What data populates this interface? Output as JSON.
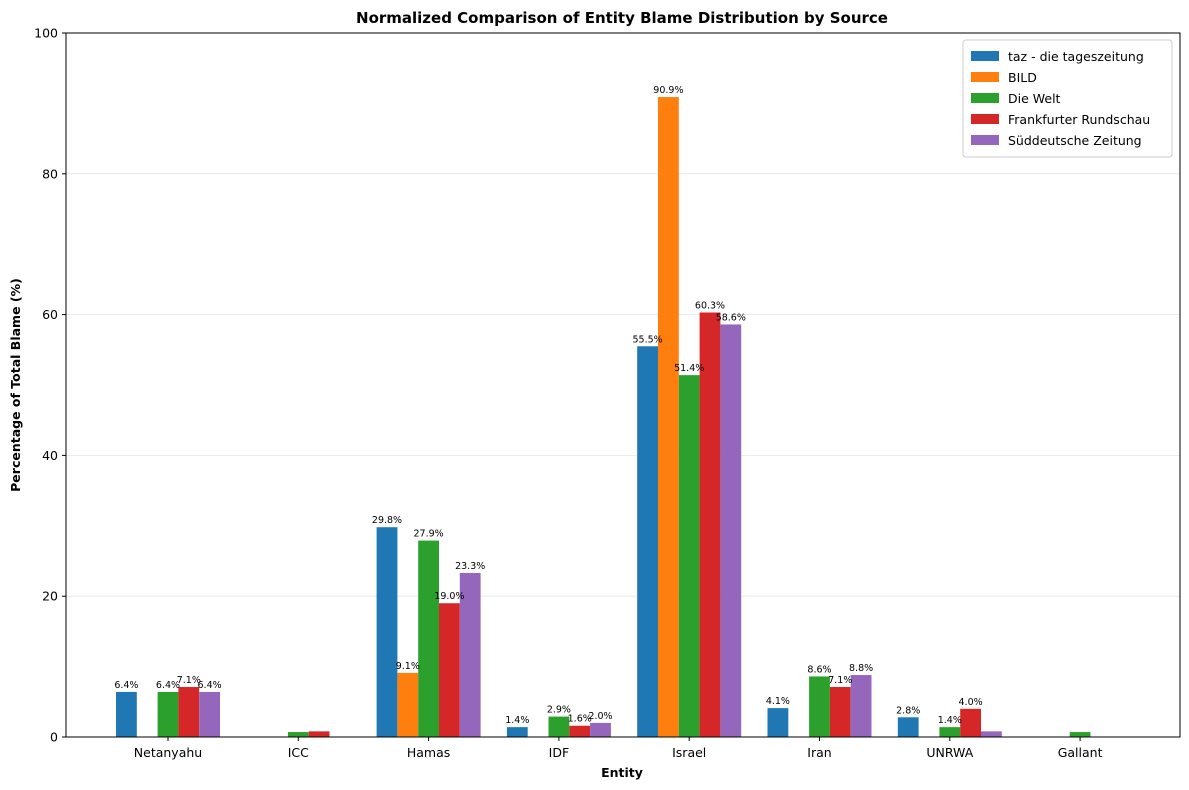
{
  "chart_data": {
    "type": "bar",
    "title": "Normalized Comparison of Entity Blame Distribution by Source",
    "xlabel": "Entity",
    "ylabel": "Percentage of Total Blame (%)",
    "ylim": [
      0,
      100
    ],
    "yticks": [
      0,
      20,
      40,
      60,
      80,
      100
    ],
    "grid": "y",
    "legend_position": "top-right",
    "categories": [
      "Netanyahu",
      "ICC",
      "Hamas",
      "IDF",
      "Israel",
      "Iran",
      "UNRWA",
      "Gallant"
    ],
    "series": [
      {
        "name": "taz - die tageszeitung",
        "color": "#1f77b4",
        "values": [
          6.4,
          0,
          29.8,
          1.4,
          55.5,
          4.1,
          2.8,
          0
        ],
        "labels": [
          "6.4%",
          "",
          "29.8%",
          "1.4%",
          "55.5%",
          "4.1%",
          "2.8%",
          ""
        ]
      },
      {
        "name": "BILD",
        "color": "#ff7f0e",
        "values": [
          0,
          0,
          9.1,
          0,
          90.9,
          0,
          0,
          0
        ],
        "labels": [
          "",
          "",
          "9.1%",
          "",
          "90.9%",
          "",
          "",
          ""
        ]
      },
      {
        "name": "Die Welt",
        "color": "#2ca02c",
        "values": [
          6.4,
          0.7,
          27.9,
          2.9,
          51.4,
          8.6,
          1.4,
          0.7
        ],
        "labels": [
          "6.4%",
          "",
          "27.9%",
          "2.9%",
          "51.4%",
          "8.6%",
          "1.4%",
          ""
        ]
      },
      {
        "name": "Frankfurter Rundschau",
        "color": "#d62728",
        "values": [
          7.1,
          0.8,
          19.0,
          1.6,
          60.3,
          7.1,
          4.0,
          0
        ],
        "labels": [
          "7.1%",
          "",
          "19.0%",
          "1.6%",
          "60.3%",
          "7.1%",
          "4.0%",
          ""
        ]
      },
      {
        "name": "Süddeutsche Zeitung",
        "color": "#9467bd",
        "values": [
          6.4,
          0,
          23.3,
          2.0,
          58.6,
          8.8,
          0.8,
          0
        ],
        "labels": [
          "6.4%",
          "",
          "23.3%",
          "2.0%",
          "58.6%",
          "8.8%",
          "",
          ""
        ]
      }
    ]
  }
}
